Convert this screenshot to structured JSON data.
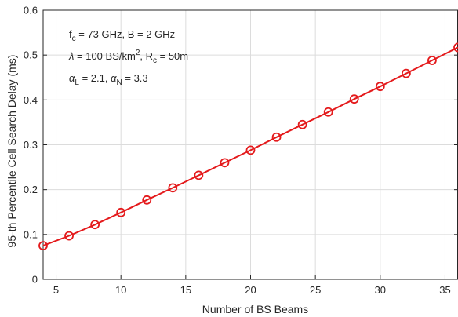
{
  "chart_data": {
    "type": "line",
    "title": "",
    "xlabel": "Number of BS Beams",
    "ylabel": "95-th Percentile Cell Search Delay (ms)",
    "xlim": [
      4,
      36
    ],
    "ylim": [
      0,
      0.6
    ],
    "xticks": [
      5,
      10,
      15,
      20,
      25,
      30,
      35
    ],
    "xtick_labels": [
      "5",
      "10",
      "15",
      "20",
      "25",
      "30",
      "35"
    ],
    "yticks": [
      0,
      0.1,
      0.2,
      0.3,
      0.4,
      0.5,
      0.6
    ],
    "ytick_labels": [
      "0",
      "0.1",
      "0.2",
      "0.3",
      "0.4",
      "0.5",
      "0.6"
    ],
    "grid": true,
    "annotations": [
      "f_c = 73 GHz, B = 2 GHz",
      "λ = 100 BS/km^2, R_c = 50m",
      "α_L = 2.1, α_N = 3.3"
    ],
    "series": [
      {
        "color": "#e41a1c",
        "marker": "circle",
        "x": [
          4,
          6,
          8,
          10,
          12,
          14,
          16,
          18,
          20,
          22,
          24,
          26,
          28,
          30,
          32,
          34,
          36
        ],
        "y": [
          0.075,
          0.097,
          0.122,
          0.149,
          0.177,
          0.204,
          0.232,
          0.26,
          0.288,
          0.317,
          0.345,
          0.373,
          0.402,
          0.43,
          0.459,
          0.488,
          0.517
        ]
      }
    ]
  }
}
